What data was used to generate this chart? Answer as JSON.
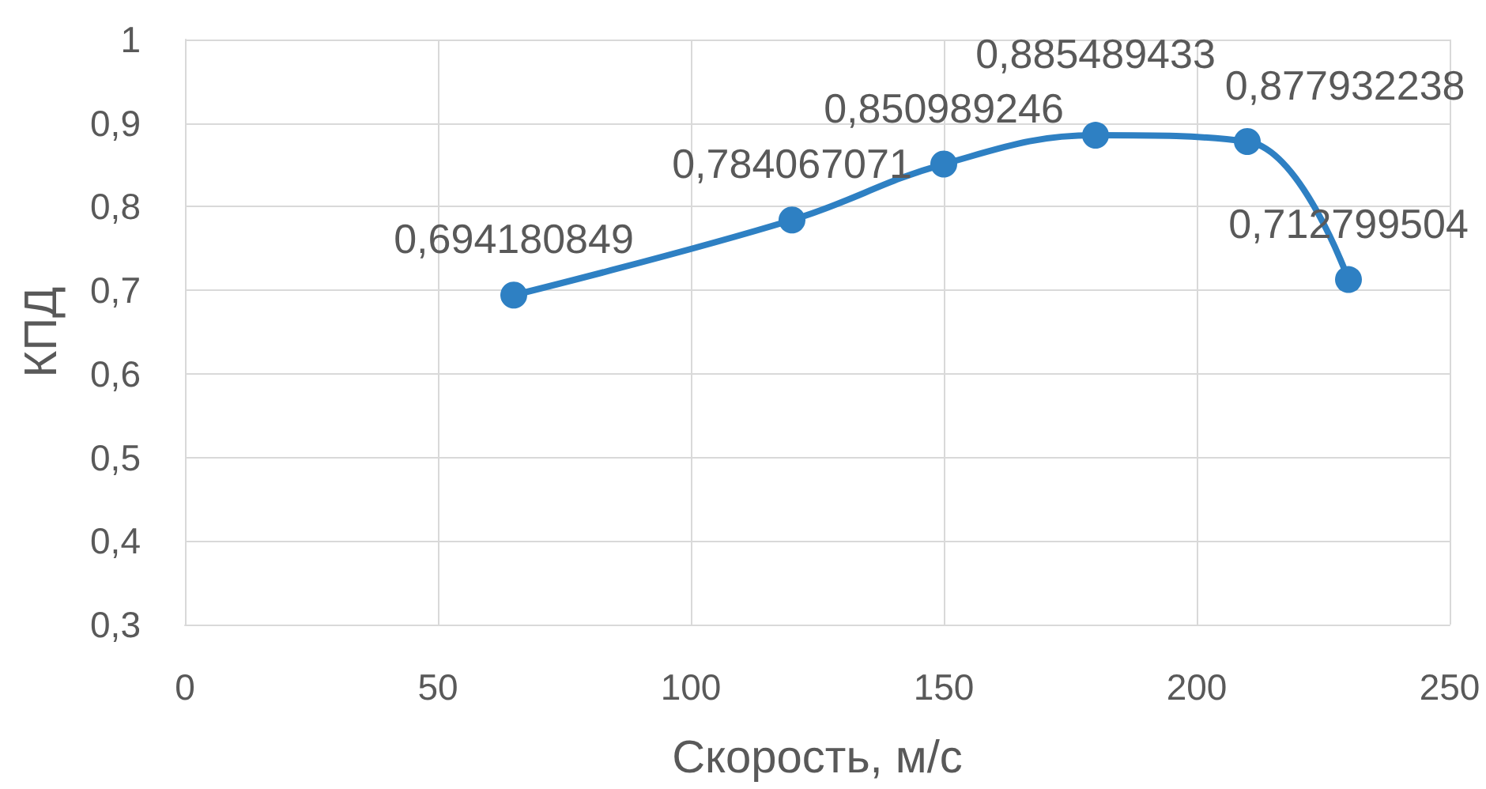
{
  "chart_data": {
    "type": "line",
    "xlabel": "Скорость, м/с",
    "ylabel": "КПД",
    "x": [
      65,
      120,
      150,
      180,
      210,
      230
    ],
    "series": [
      {
        "color": "#2e80c3",
        "values": [
          0.694180849,
          0.784067071,
          0.850989246,
          0.885489433,
          0.877932238,
          0.712799504
        ],
        "value_labels": [
          "0,694180849",
          "0,784067071",
          "0,850989246",
          "0,885489433",
          "0,877932238",
          "0,712799504"
        ]
      }
    ],
    "xlim": [
      0,
      250
    ],
    "xticks": [
      0,
      50,
      100,
      150,
      200,
      250
    ],
    "ylim": [
      0.3,
      1
    ],
    "yticks": [
      {
        "value": 0.3,
        "label": "0,3"
      },
      {
        "value": 0.4,
        "label": "0,4"
      },
      {
        "value": 0.5,
        "label": "0,5"
      },
      {
        "value": 0.6,
        "label": "0,6"
      },
      {
        "value": 0.7,
        "label": "0,7"
      },
      {
        "value": 0.8,
        "label": "0,8"
      },
      {
        "value": 0.9,
        "label": "0,9"
      },
      1
    ],
    "grid": true,
    "marker": "circle",
    "line_style": "solid"
  }
}
